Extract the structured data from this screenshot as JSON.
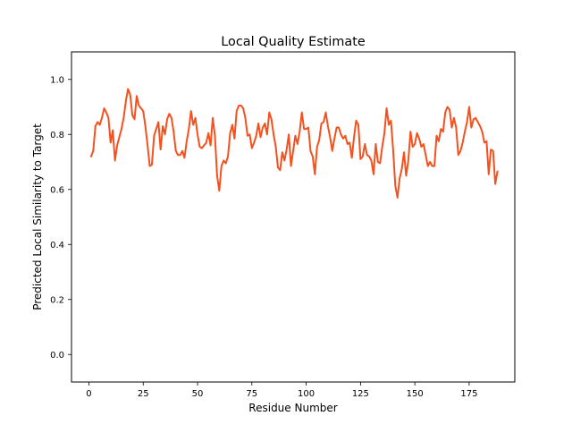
{
  "chart_data": {
    "type": "line",
    "title": "Local Quality Estimate",
    "xlabel": "Residue Number",
    "ylabel": "Predicted Local Similarity to Target",
    "xlim": [
      -8,
      196
    ],
    "ylim": [
      -0.1,
      1.1
    ],
    "xticks": [
      0,
      25,
      50,
      75,
      100,
      125,
      150,
      175
    ],
    "yticks": [
      0.0,
      0.2,
      0.4,
      0.6,
      0.8,
      1.0
    ],
    "xtick_labels": [
      "0",
      "25",
      "50",
      "75",
      "100",
      "125",
      "150",
      "175"
    ],
    "ytick_labels": [
      "0.0",
      "0.2",
      "0.4",
      "0.6",
      "0.8",
      "1.0"
    ],
    "grid": false,
    "series": [
      {
        "color": "#f4511e",
        "x": [
          1,
          2,
          3,
          4,
          5,
          6,
          7,
          8,
          9,
          10,
          11,
          12,
          13,
          14,
          15,
          16,
          17,
          18,
          19,
          20,
          21,
          22,
          23,
          24,
          25,
          26,
          27,
          28,
          29,
          30,
          31,
          32,
          33,
          34,
          35,
          36,
          37,
          38,
          39,
          40,
          41,
          42,
          43,
          44,
          45,
          46,
          47,
          48,
          49,
          50,
          51,
          52,
          53,
          54,
          55,
          56,
          57,
          58,
          59,
          60,
          61,
          62,
          63,
          64,
          65,
          66,
          67,
          68,
          69,
          70,
          71,
          72,
          73,
          74,
          75,
          76,
          77,
          78,
          79,
          80,
          81,
          82,
          83,
          84,
          85,
          86,
          87,
          88,
          89,
          90,
          91,
          92,
          93,
          94,
          95,
          96,
          97,
          98,
          99,
          100,
          101,
          102,
          103,
          104,
          105,
          106,
          107,
          108,
          109,
          110,
          111,
          112,
          113,
          114,
          115,
          116,
          117,
          118,
          119,
          120,
          121,
          122,
          123,
          124,
          125,
          126,
          127,
          128,
          129,
          130,
          131,
          132,
          133,
          134,
          135,
          136,
          137,
          138,
          139,
          140,
          141,
          142,
          143,
          144,
          145,
          146,
          147,
          148,
          149,
          150,
          151,
          152,
          153,
          154,
          155,
          156,
          157,
          158,
          159,
          160,
          161,
          162,
          163,
          164,
          165,
          166,
          167,
          168,
          169,
          170,
          171,
          172,
          173,
          174,
          175,
          176,
          177,
          178,
          179,
          180,
          181,
          182,
          183,
          184,
          185,
          186,
          187,
          188
        ],
        "y": [
          0.72,
          0.74,
          0.83,
          0.845,
          0.835,
          0.86,
          0.895,
          0.88,
          0.86,
          0.77,
          0.815,
          0.705,
          0.76,
          0.79,
          0.82,
          0.86,
          0.92,
          0.965,
          0.945,
          0.87,
          0.855,
          0.94,
          0.905,
          0.895,
          0.885,
          0.83,
          0.76,
          0.685,
          0.69,
          0.795,
          0.82,
          0.845,
          0.745,
          0.83,
          0.8,
          0.855,
          0.875,
          0.86,
          0.81,
          0.74,
          0.725,
          0.725,
          0.74,
          0.715,
          0.775,
          0.82,
          0.885,
          0.835,
          0.86,
          0.8,
          0.755,
          0.75,
          0.76,
          0.77,
          0.805,
          0.76,
          0.86,
          0.795,
          0.65,
          0.595,
          0.685,
          0.705,
          0.695,
          0.72,
          0.805,
          0.835,
          0.785,
          0.885,
          0.905,
          0.905,
          0.895,
          0.86,
          0.795,
          0.8,
          0.75,
          0.77,
          0.795,
          0.84,
          0.79,
          0.825,
          0.84,
          0.8,
          0.88,
          0.855,
          0.8,
          0.755,
          0.68,
          0.67,
          0.735,
          0.705,
          0.745,
          0.8,
          0.685,
          0.74,
          0.795,
          0.765,
          0.81,
          0.88,
          0.82,
          0.82,
          0.825,
          0.74,
          0.72,
          0.655,
          0.755,
          0.78,
          0.84,
          0.845,
          0.88,
          0.83,
          0.79,
          0.74,
          0.785,
          0.825,
          0.825,
          0.8,
          0.785,
          0.795,
          0.765,
          0.77,
          0.715,
          0.79,
          0.85,
          0.835,
          0.71,
          0.72,
          0.765,
          0.725,
          0.72,
          0.705,
          0.655,
          0.765,
          0.7,
          0.695,
          0.755,
          0.805,
          0.895,
          0.835,
          0.85,
          0.745,
          0.615,
          0.57,
          0.64,
          0.675,
          0.735,
          0.65,
          0.705,
          0.81,
          0.755,
          0.765,
          0.805,
          0.785,
          0.755,
          0.765,
          0.725,
          0.685,
          0.7,
          0.685,
          0.685,
          0.795,
          0.775,
          0.82,
          0.81,
          0.88,
          0.9,
          0.89,
          0.825,
          0.86,
          0.825,
          0.725,
          0.74,
          0.77,
          0.81,
          0.845,
          0.9,
          0.825,
          0.855,
          0.86,
          0.845,
          0.83,
          0.81,
          0.77,
          0.775,
          0.655,
          0.745,
          0.74,
          0.62,
          0.665
        ]
      }
    ]
  }
}
